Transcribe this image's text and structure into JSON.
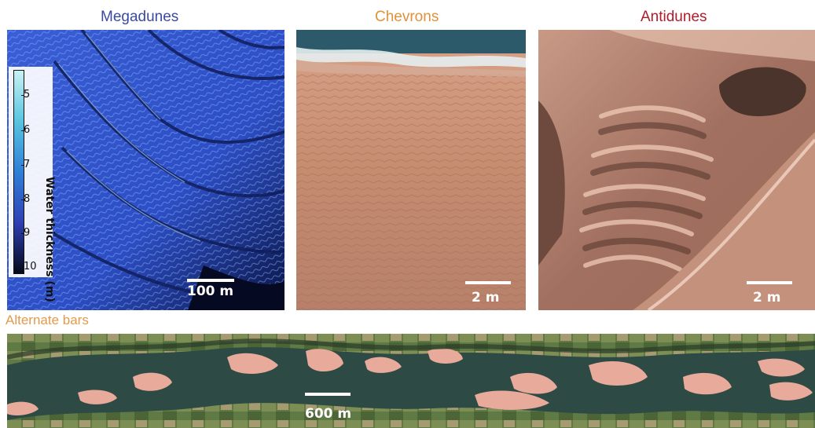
{
  "panels": {
    "megadunes": {
      "title": "Megadunes",
      "title_color": "#3a4aa0",
      "scale_label": "100 m",
      "colorbar": {
        "title": "Water thickness (m)",
        "ticks": [
          "5",
          "6",
          "7",
          "8",
          "9",
          "10"
        ]
      }
    },
    "chevrons": {
      "title": "Chevrons",
      "title_color": "#e0923a",
      "scale_label": "2 m"
    },
    "antidunes": {
      "title": "Antidunes",
      "title_color": "#b01c2a",
      "scale_label": "2 m"
    },
    "alternate_bars": {
      "title": "Alternate bars",
      "title_color": "#e39a4a",
      "scale_label": "600 m"
    }
  }
}
